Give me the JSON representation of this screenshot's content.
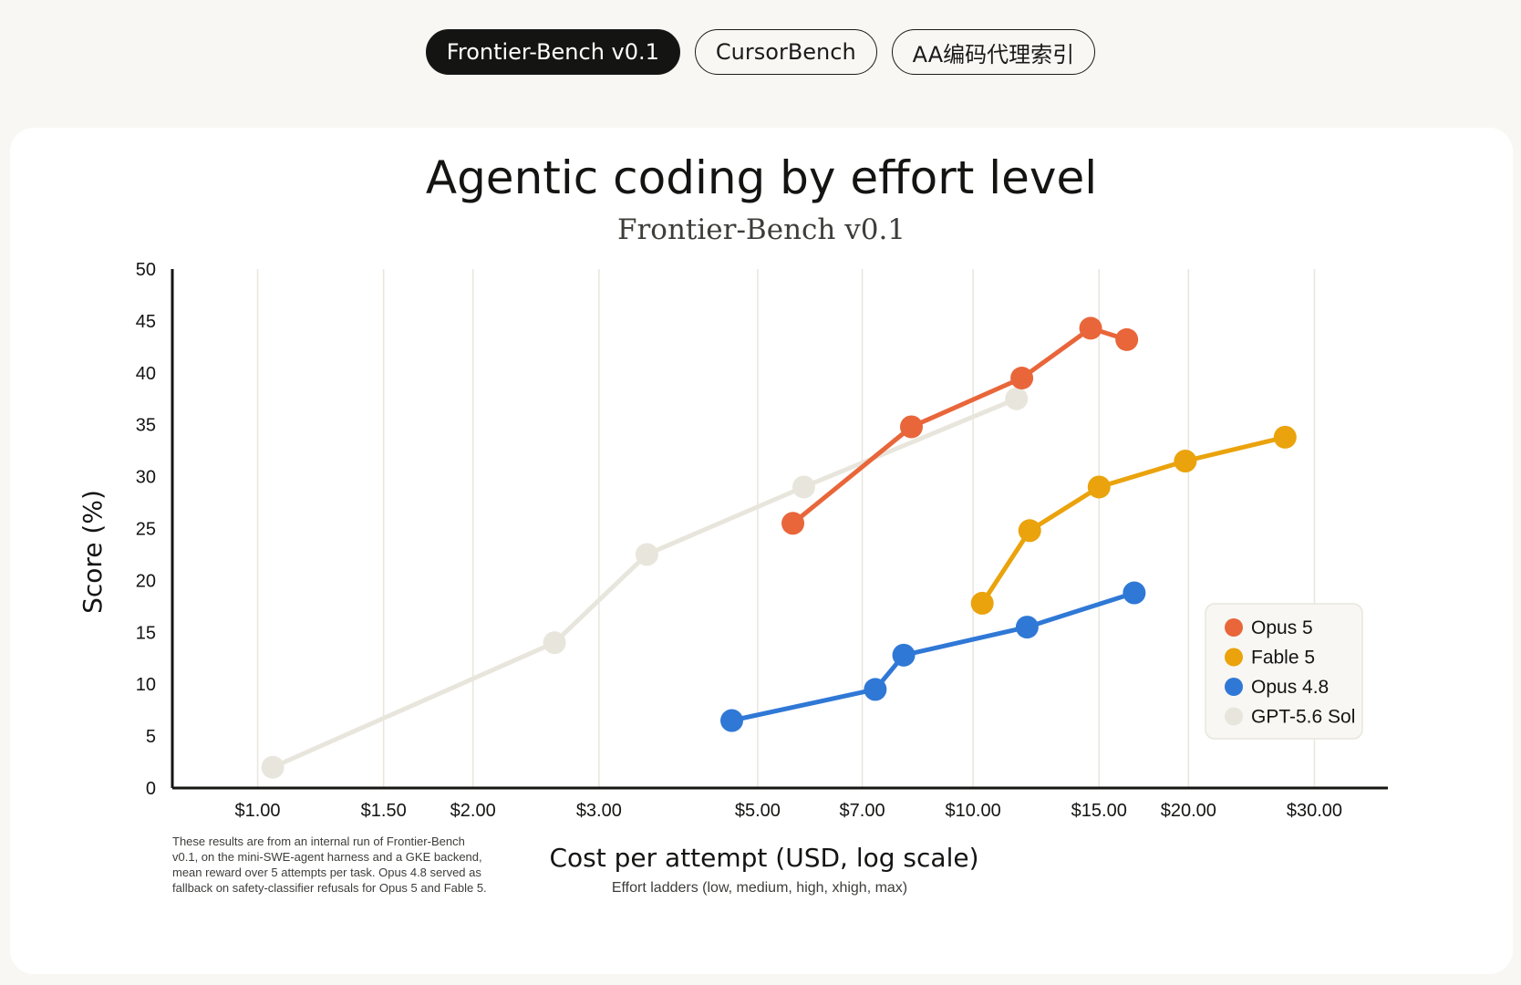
{
  "tabs": [
    {
      "label": "Frontier-Bench v0.1",
      "active": true
    },
    {
      "label": "CursorBench",
      "active": false
    },
    {
      "label": "AA编码代理索引",
      "active": false
    }
  ],
  "chart_data": {
    "type": "line",
    "title": "Agentic coding by effort level",
    "subtitle": "Frontier-Bench v0.1",
    "xlabel": "Cost per attempt (USD, log scale)",
    "xlabel_sub": "Effort ladders (low, medium, high, xhigh, max)",
    "ylabel": "Score (%)",
    "x_scale": "log",
    "xlim": [
      0.76,
      38
    ],
    "ylim": [
      0,
      50
    ],
    "x_ticks": [
      {
        "value": 1,
        "label": "$1.00"
      },
      {
        "value": 1.5,
        "label": "$1.50"
      },
      {
        "value": 2,
        "label": "$2.00"
      },
      {
        "value": 3,
        "label": "$3.00"
      },
      {
        "value": 5,
        "label": "$5.00"
      },
      {
        "value": 7,
        "label": "$7.00"
      },
      {
        "value": 10,
        "label": "$10.00"
      },
      {
        "value": 15,
        "label": "$15.00"
      },
      {
        "value": 20,
        "label": "$20.00"
      },
      {
        "value": 30,
        "label": "$30.00"
      }
    ],
    "y_ticks": [
      0,
      5,
      10,
      15,
      20,
      25,
      30,
      35,
      40,
      45,
      50
    ],
    "grid": "vertical",
    "legend_position": "bottom-right",
    "series": [
      {
        "name": "GPT-5.6 Sol",
        "color": "#e8e6dc",
        "x": [
          1.05,
          2.6,
          3.5,
          5.8,
          11.5
        ],
        "y": [
          2,
          14,
          22.5,
          29,
          37.5
        ]
      },
      {
        "name": "Opus 5",
        "color": "#e8663a",
        "x": [
          5.6,
          8.2,
          11.7,
          14.6,
          16.4
        ],
        "y": [
          25.5,
          34.8,
          39.5,
          44.3,
          43.2
        ]
      },
      {
        "name": "Fable 5",
        "color": "#eaa30c",
        "x": [
          10.3,
          12.0,
          15.0,
          19.8,
          27.3
        ],
        "y": [
          17.8,
          24.8,
          29,
          31.5,
          33.8
        ]
      },
      {
        "name": "Opus 4.8",
        "color": "#2f78d6",
        "x": [
          4.6,
          7.3,
          8.0,
          11.9,
          16.8
        ],
        "y": [
          6.5,
          9.5,
          12.8,
          15.5,
          18.8
        ]
      }
    ],
    "legend_order": [
      "Opus 5",
      "Fable 5",
      "Opus 4.8",
      "GPT-5.6 Sol"
    ],
    "note": [
      "These results are from an internal run of Frontier-Bench",
      "v0.1, on the mini-SWE-agent harness and a GKE backend,",
      "mean reward over 5 attempts per task. Opus 4.8 served as",
      "fallback on safety-classifier refusals for Opus 5 and Fable 5."
    ]
  }
}
